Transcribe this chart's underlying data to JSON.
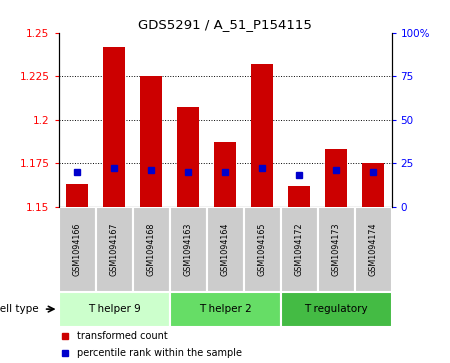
{
  "title": "GDS5291 / A_51_P154115",
  "samples": [
    "GSM1094166",
    "GSM1094167",
    "GSM1094168",
    "GSM1094163",
    "GSM1094164",
    "GSM1094165",
    "GSM1094172",
    "GSM1094173",
    "GSM1094174"
  ],
  "transformed_count": [
    1.163,
    1.242,
    1.225,
    1.207,
    1.187,
    1.232,
    1.162,
    1.183,
    1.175
  ],
  "percentile_rank": [
    20,
    22,
    21,
    20,
    20,
    22,
    18,
    21,
    20
  ],
  "y_min": 1.15,
  "y_max": 1.25,
  "y_ticks": [
    1.15,
    1.175,
    1.2,
    1.225,
    1.25
  ],
  "right_y_ticks": [
    0,
    25,
    50,
    75,
    100
  ],
  "right_y_labels": [
    "0",
    "25",
    "50",
    "75",
    "100%"
  ],
  "bar_color": "#CC0000",
  "percentile_color": "#0000CC",
  "bar_width": 0.6,
  "groups": [
    {
      "label": "T helper 9",
      "indices": [
        0,
        1,
        2
      ],
      "color": "#ccffcc"
    },
    {
      "label": "T helper 2",
      "indices": [
        3,
        4,
        5
      ],
      "color": "#66dd66"
    },
    {
      "label": "T regulatory",
      "indices": [
        6,
        7,
        8
      ],
      "color": "#44bb44"
    }
  ],
  "cell_type_label": "cell type",
  "legend_items": [
    {
      "label": "transformed count",
      "color": "#CC0000"
    },
    {
      "label": "percentile rank within the sample",
      "color": "#0000CC"
    }
  ],
  "tick_label_bg": "#cccccc",
  "grid_color": "#000000"
}
